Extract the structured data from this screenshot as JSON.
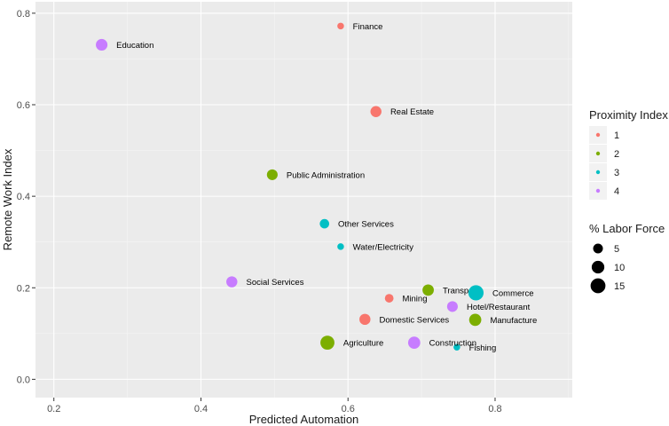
{
  "chart_data": {
    "type": "scatter",
    "xlabel": "Predicted Automation",
    "ylabel": "Remote Work Index",
    "xlim": [
      0.175,
      0.905
    ],
    "ylim": [
      -0.04,
      0.825
    ],
    "xticks": [
      0.2,
      0.4,
      0.6,
      0.8
    ],
    "yticks": [
      0.0,
      0.2,
      0.4,
      0.6,
      0.8
    ],
    "xtick_labels": [
      "0.2",
      "0.4",
      "0.6",
      "0.8"
    ],
    "ytick_labels": [
      "0.0",
      "0.2",
      "0.4",
      "0.6",
      "0.8"
    ],
    "grid": true,
    "background": "#ebebeb",
    "legend_placement": "right",
    "color_legend": {
      "title": "Proximity Index",
      "items": [
        {
          "label": "1",
          "color": "#f8766d"
        },
        {
          "label": "2",
          "color": "#7cae00"
        },
        {
          "label": "3",
          "color": "#00bfc4"
        },
        {
          "label": "4",
          "color": "#c77cff"
        }
      ]
    },
    "size_legend": {
      "title": "% Labor Force",
      "items": [
        {
          "label": "5",
          "value": 5
        },
        {
          "label": "10",
          "value": 10
        },
        {
          "label": "15",
          "value": 15
        }
      ]
    },
    "points": [
      {
        "label": "Finance",
        "x": 0.59,
        "y": 0.772,
        "proximity": 1,
        "size": 1.5
      },
      {
        "label": "Education",
        "x": 0.265,
        "y": 0.731,
        "proximity": 4,
        "size": 8
      },
      {
        "label": "Real Estate",
        "x": 0.638,
        "y": 0.585,
        "proximity": 1,
        "size": 7
      },
      {
        "label": "Public Administration",
        "x": 0.497,
        "y": 0.447,
        "proximity": 2,
        "size": 6.5
      },
      {
        "label": "Other Services",
        "x": 0.568,
        "y": 0.34,
        "proximity": 3,
        "size": 4.5
      },
      {
        "label": "Water/Electricity",
        "x": 0.59,
        "y": 0.29,
        "proximity": 3,
        "size": 1.5
      },
      {
        "label": "Social Services",
        "x": 0.442,
        "y": 0.213,
        "proximity": 4,
        "size": 7
      },
      {
        "label": "Transp",
        "x": 0.709,
        "y": 0.195,
        "proximity": 2,
        "size": 7.5
      },
      {
        "label": "Commerce",
        "x": 0.774,
        "y": 0.189,
        "proximity": 3,
        "size": 16
      },
      {
        "label": "Mining",
        "x": 0.656,
        "y": 0.177,
        "proximity": 1,
        "size": 3.5
      },
      {
        "label": "Hotel/Restaurant",
        "x": 0.742,
        "y": 0.159,
        "proximity": 4,
        "size": 6.5
      },
      {
        "label": "Domestic Services",
        "x": 0.623,
        "y": 0.131,
        "proximity": 1,
        "size": 7
      },
      {
        "label": "Manufacture",
        "x": 0.773,
        "y": 0.13,
        "proximity": 2,
        "size": 9
      },
      {
        "label": "Agriculture",
        "x": 0.572,
        "y": 0.08,
        "proximity": 2,
        "size": 13
      },
      {
        "label": "Construction",
        "x": 0.69,
        "y": 0.08,
        "proximity": 4,
        "size": 9
      },
      {
        "label": "Fishing",
        "x": 0.748,
        "y": 0.07,
        "proximity": 3,
        "size": 1.5
      }
    ]
  }
}
